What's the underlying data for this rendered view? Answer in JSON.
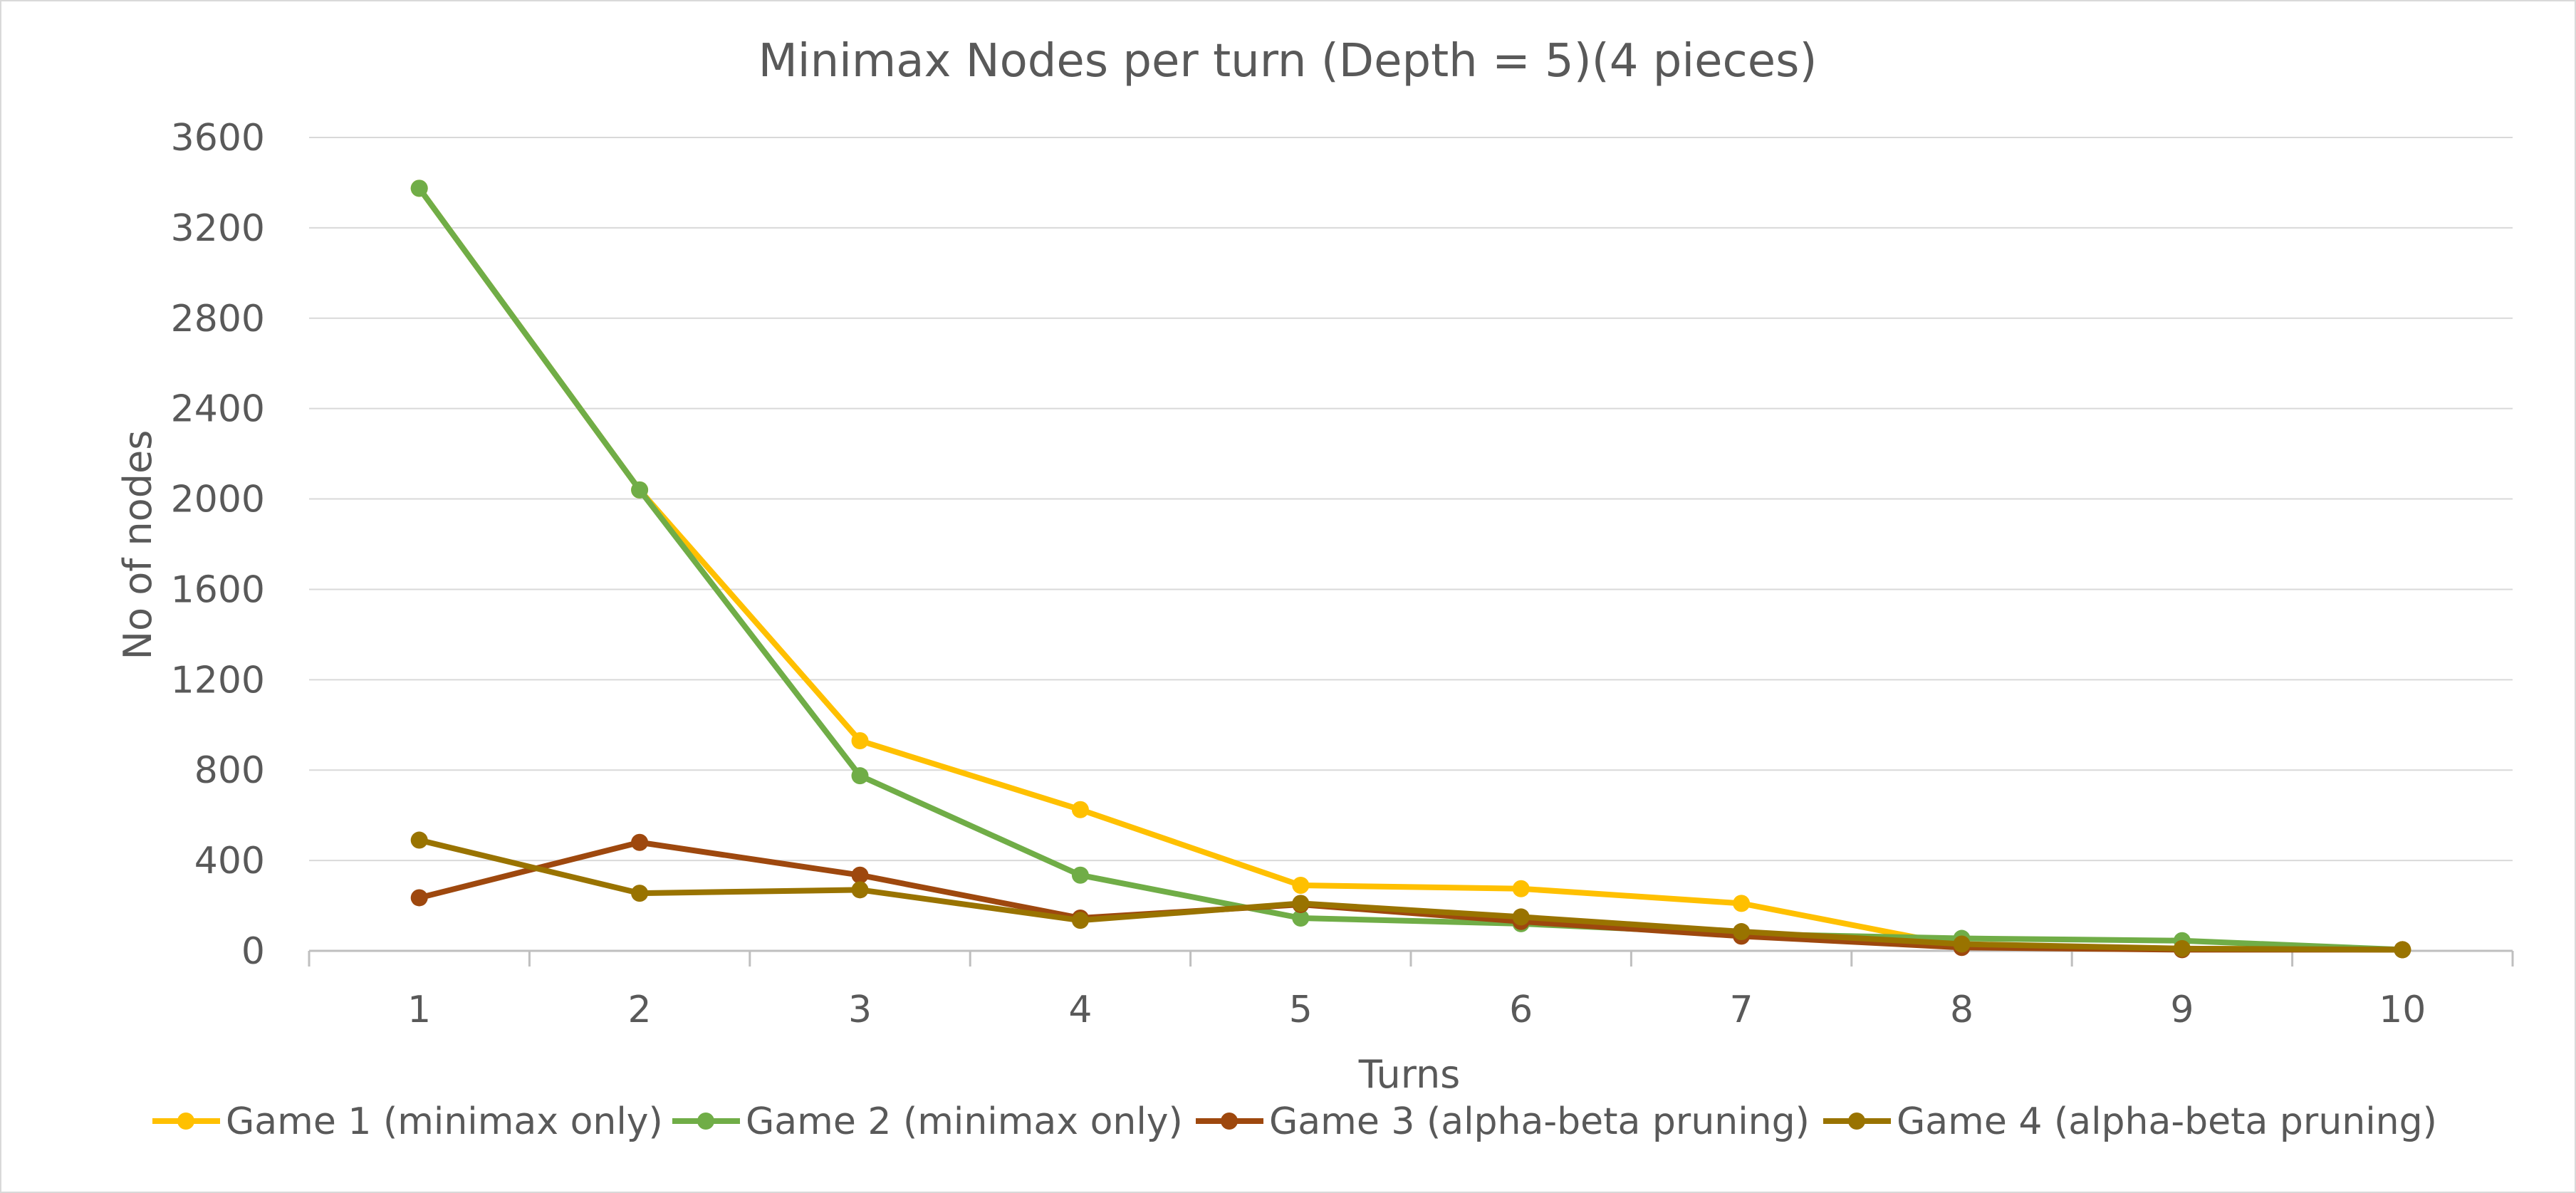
{
  "chart_data": {
    "type": "line",
    "title": "Minimax Nodes per turn (Depth = 5)(4 pieces)",
    "xlabel": "Turns",
    "ylabel": "No of nodes",
    "x": [
      "1",
      "2",
      "3",
      "4",
      "5",
      "6",
      "7",
      "8",
      "9",
      "10"
    ],
    "ylim": [
      0,
      3600
    ],
    "yticks": [
      "0",
      "400",
      "800",
      "1200",
      "1600",
      "2000",
      "2400",
      "2800",
      "3200",
      "3600"
    ],
    "grid": true,
    "legend_position": "bottom",
    "series": [
      {
        "name": "Game 1 (minimax only)",
        "color": "#FFC000",
        "values": [
          3375,
          2040,
          930,
          625,
          290,
          275,
          210,
          20,
          10,
          5
        ]
      },
      {
        "name": "Game 2 (minimax only)",
        "color": "#70AD47",
        "values": [
          3375,
          2040,
          775,
          335,
          145,
          120,
          75,
          55,
          45,
          5
        ]
      },
      {
        "name": "Game 3 (alpha-beta pruning)",
        "color": "#9E480E",
        "values": [
          235,
          480,
          335,
          145,
          205,
          130,
          65,
          15,
          5,
          5
        ]
      },
      {
        "name": "Game 4 (alpha-beta pruning)",
        "color": "#997300",
        "values": [
          490,
          255,
          270,
          135,
          210,
          150,
          85,
          30,
          10,
          5
        ]
      }
    ]
  }
}
